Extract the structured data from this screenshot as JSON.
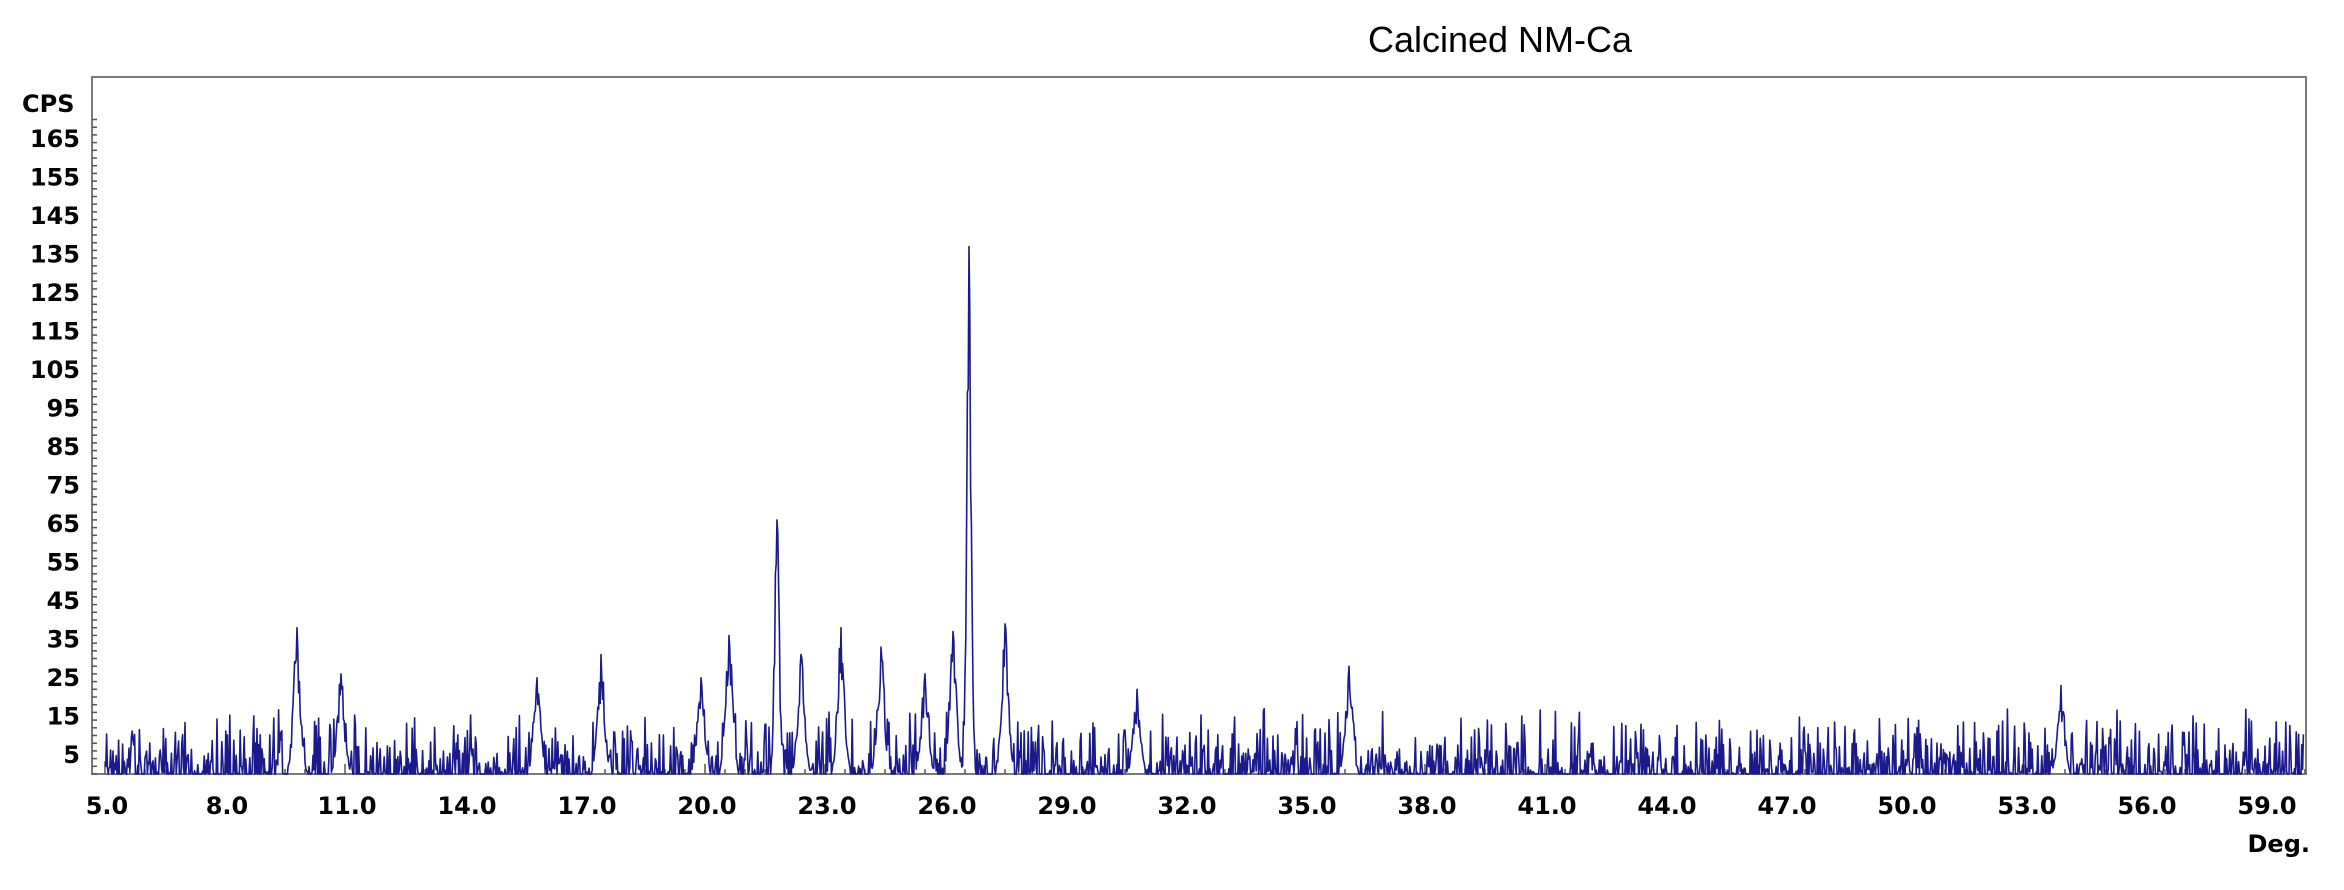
{
  "chart_data": {
    "type": "line",
    "title": "Calcined NM-Ca",
    "ylabel": "CPS",
    "xlabel": "Deg.",
    "xlim": [
      4.7,
      60.0
    ],
    "ylim": [
      0,
      170
    ],
    "grid": false,
    "legend": "none",
    "x_ticks": [
      "5.0",
      "8.0",
      "11.0",
      "14.0",
      "17.0",
      "20.0",
      "23.0",
      "26.0",
      "29.0",
      "32.0",
      "35.0",
      "38.0",
      "41.0",
      "44.0",
      "47.0",
      "50.0",
      "53.0",
      "56.0",
      "59.0"
    ],
    "y_ticks": [
      "5",
      "15",
      "25",
      "35",
      "45",
      "55",
      "65",
      "75",
      "85",
      "95",
      "105",
      "115",
      "125",
      "135",
      "145",
      "155",
      "165"
    ],
    "series": [
      {
        "color": "#1a1a8c",
        "peaks": [
          {
            "x": 9.8,
            "y": 38
          },
          {
            "x": 10.9,
            "y": 26
          },
          {
            "x": 15.8,
            "y": 25
          },
          {
            "x": 17.4,
            "y": 31
          },
          {
            "x": 19.9,
            "y": 25
          },
          {
            "x": 20.6,
            "y": 36
          },
          {
            "x": 21.8,
            "y": 66
          },
          {
            "x": 22.4,
            "y": 31
          },
          {
            "x": 23.4,
            "y": 38
          },
          {
            "x": 24.4,
            "y": 33
          },
          {
            "x": 25.5,
            "y": 26
          },
          {
            "x": 26.2,
            "y": 37
          },
          {
            "x": 26.6,
            "y": 137
          },
          {
            "x": 27.5,
            "y": 39
          },
          {
            "x": 30.8,
            "y": 22
          },
          {
            "x": 36.1,
            "y": 28
          },
          {
            "x": 53.9,
            "y": 23
          }
        ],
        "baseline_max": 17
      }
    ]
  }
}
